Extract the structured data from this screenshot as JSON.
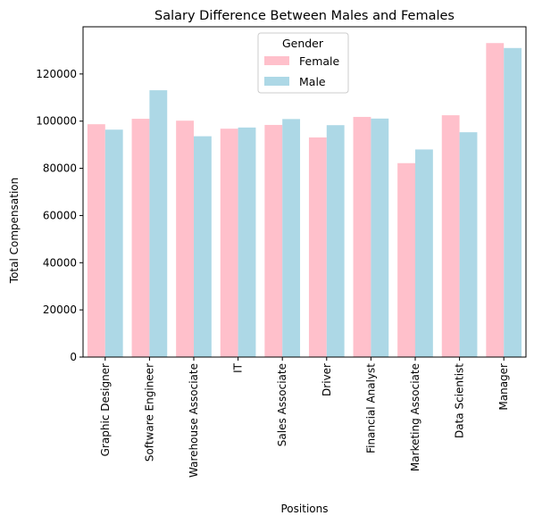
{
  "chart_data": {
    "type": "bar",
    "title": "Salary Difference Between Males and Females",
    "xlabel": "Positions",
    "ylabel": "Total Compensation",
    "ylim": [
      0,
      140000
    ],
    "yticks": [
      0,
      20000,
      40000,
      60000,
      80000,
      100000,
      120000
    ],
    "ytick_labels": [
      "0",
      "20000",
      "40000",
      "60000",
      "80000",
      "100000",
      "120000"
    ],
    "categories": [
      "Graphic Designer",
      "Software Engineer",
      "Warehouse Associate",
      "IT",
      "Sales Associate",
      "Driver",
      "Financial Analyst",
      "Marketing Associate",
      "Data Scientist",
      "Manager"
    ],
    "series": [
      {
        "name": "Female",
        "color": "#ffc0cb",
        "values": [
          98700,
          101000,
          100200,
          96800,
          98400,
          93100,
          101800,
          82200,
          102500,
          133100
        ]
      },
      {
        "name": "Male",
        "color": "#add8e6",
        "values": [
          96400,
          113100,
          93600,
          97300,
          100900,
          98300,
          101100,
          88000,
          95300,
          131000
        ]
      }
    ],
    "legend": {
      "title": "Gender",
      "position": "top-center"
    },
    "grid": false
  }
}
